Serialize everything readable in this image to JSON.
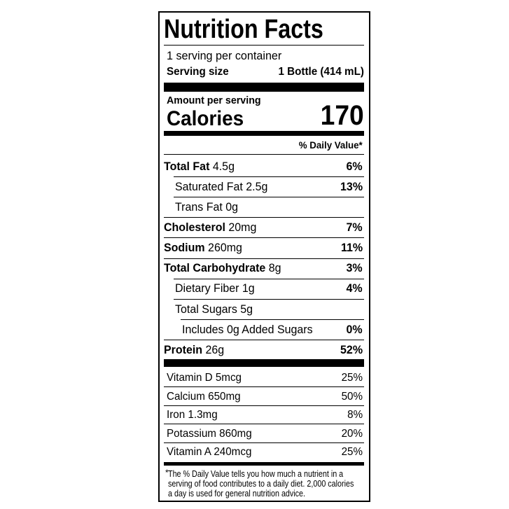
{
  "title": "Nutrition Facts",
  "servings": "1 serving per container",
  "serving_size": {
    "label": "Serving size",
    "value": "1 Bottle (414 mL)"
  },
  "amount_per_serving": "Amount per serving",
  "calories": {
    "label": "Calories",
    "value": "170"
  },
  "daily_value_header": "% Daily Value*",
  "nutrients": [
    {
      "name": "Total Fat",
      "amount": "4.5g",
      "dv": "6%"
    },
    {
      "name": "Saturated Fat",
      "amount": "2.5g",
      "dv": "13%"
    },
    {
      "name": "Trans Fat",
      "amount": "0g"
    },
    {
      "name": "Cholesterol",
      "amount": "20mg",
      "dv": "7%"
    },
    {
      "name": "Sodium",
      "amount": "260mg",
      "dv": "11%"
    },
    {
      "name": "Total Carbohydrate",
      "amount": "8g",
      "dv": "3%"
    },
    {
      "name": "Dietary Fiber",
      "amount": "1g",
      "dv": "4%"
    },
    {
      "name": "Total Sugars",
      "amount": "5g"
    },
    {
      "name": "Includes 0g Added Sugars",
      "dv": "0%"
    },
    {
      "name": "Protein",
      "amount": "26g",
      "dv": "52%"
    }
  ],
  "vitamins": [
    {
      "name": "Vitamin D 5mcg",
      "dv": "25%"
    },
    {
      "name": "Calcium 650mg",
      "dv": "50%"
    },
    {
      "name": "Iron 1.3mg",
      "dv": "8%"
    },
    {
      "name": "Potassium 860mg",
      "dv": "20%"
    },
    {
      "name": "Vitamin A 240mcg",
      "dv": "25%"
    }
  ],
  "footnote": {
    "mark": "*",
    "lines": [
      "The % Daily Value tells you how much a nutrient in a",
      "serving of food contributes to a daily diet. 2,000 calories",
      "a day is used for general nutrition advice."
    ]
  }
}
